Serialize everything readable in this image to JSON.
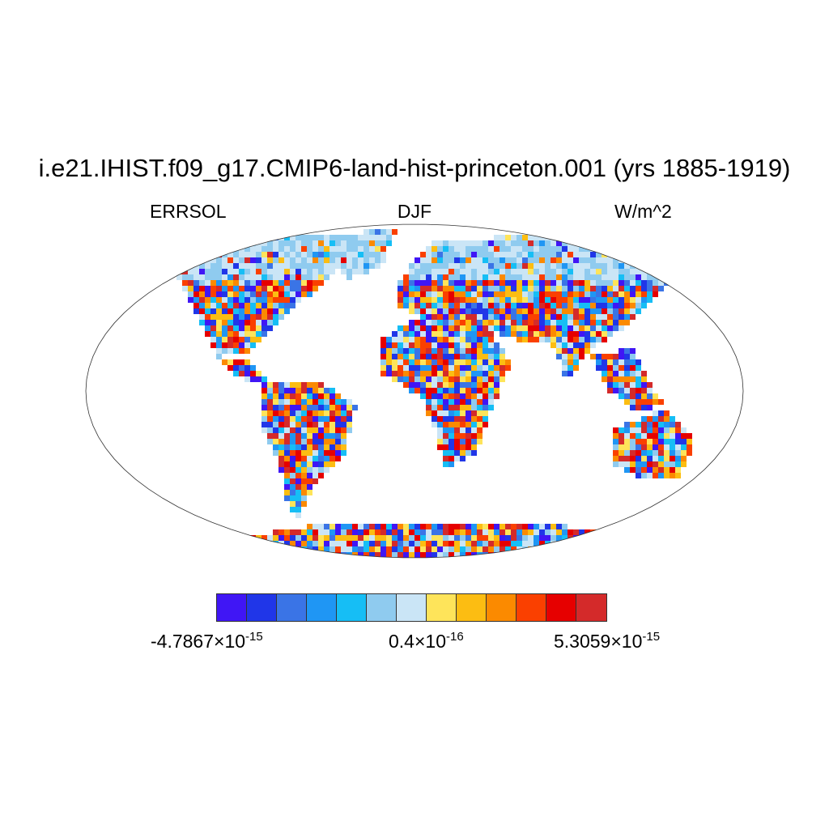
{
  "title": "i.e21.IHIST.f09_g17.CMIP6-land-hist-princeton.001 (yrs 1885-1919)",
  "left_string": "ERRSOL",
  "center_string": "DJF",
  "right_string": "W/m^2",
  "projection": "Robinson",
  "colorbar": {
    "colors": [
      "#4016f5",
      "#2036e8",
      "#3a74e6",
      "#1f96f4",
      "#16bef5",
      "#8fcbef",
      "#cae5f6",
      "#fee45a",
      "#fcbd12",
      "#fb8a00",
      "#fa4000",
      "#e60000",
      "#d42a2a"
    ],
    "labels": {
      "min_mantissa": "-4.7867",
      "min_exponent": "-15",
      "mid_mantissa": "0.4",
      "mid_exponent": "-16",
      "max_mantissa": "5.3059",
      "max_exponent": "-15"
    },
    "times_sign": "×",
    "ten": "10"
  },
  "chart_data": {
    "type": "heatmap",
    "title": "i.e21.IHIST.f09_g17.CMIP6-land-hist-princeton.001 (yrs 1885-1919)",
    "variable": "ERRSOL",
    "season": "DJF",
    "units": "W/m^2",
    "color_range": [
      -4.7867e-15,
      5.3059e-15
    ],
    "color_midpoint_label": 4e-17
  }
}
